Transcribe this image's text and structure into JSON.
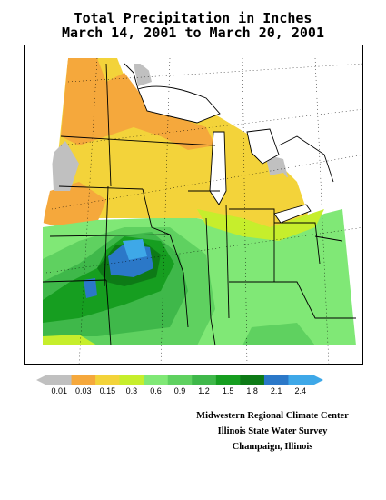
{
  "title_line1": "Total Precipitation in Inches",
  "title_line2": "March 14, 2001 to March 20, 2001",
  "legend": {
    "unit": "inches",
    "bins": [
      {
        "label": "0.01",
        "color": "#c0c0c0"
      },
      {
        "label": "0.03",
        "color": "#f5a83c"
      },
      {
        "label": "0.15",
        "color": "#f3d33a"
      },
      {
        "label": "0.3",
        "color": "#c6ee2c"
      },
      {
        "label": "0.6",
        "color": "#80e876"
      },
      {
        "label": "0.9",
        "color": "#5fd160"
      },
      {
        "label": "1.2",
        "color": "#3fb84a"
      },
      {
        "label": "1.5",
        "color": "#169e20"
      },
      {
        "label": "1.8",
        "color": "#0d7a16"
      },
      {
        "label": "2.1",
        "color": "#2b78c8"
      },
      {
        "label": "2.4",
        "color": "#3ea8e8"
      }
    ],
    "over_color": "#3ea8e8",
    "under_color": "#c0c0c0"
  },
  "credits": {
    "line1": "Midwestern Regional Climate Center",
    "line2": "Illinois State Water Survey",
    "line3": "Champaign, Illinois"
  },
  "map": {
    "region": "Midwestern United States",
    "water_color": "#ffffff",
    "boundary_color": "#000000"
  }
}
